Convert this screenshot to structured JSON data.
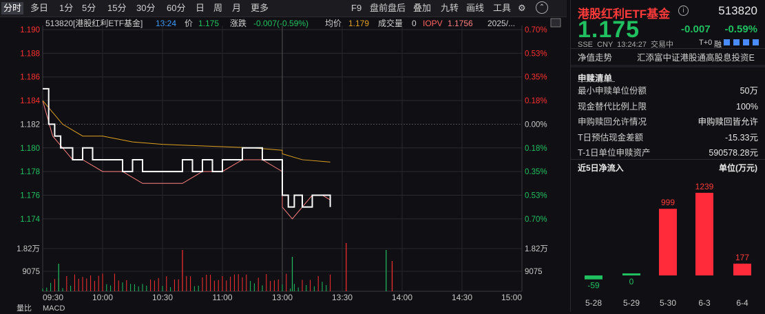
{
  "toolbar": {
    "periods": [
      "分时",
      "多日",
      "1分",
      "5分",
      "15分",
      "30分",
      "60分",
      "日",
      "周",
      "月",
      "更多"
    ],
    "active": "分时",
    "right_items": [
      "F9",
      "盘前盘后",
      "叠加",
      "九转",
      "画线",
      "工具"
    ],
    "icons": [
      "gear-icon",
      "chevron-up-icon"
    ]
  },
  "quote_bar": {
    "code_name": "513820[港股红利ETF基金]",
    "time": "13:24",
    "price_label": "价",
    "price": "1.175",
    "change_label": "涨跌",
    "change": "-0.007(-0.59%)",
    "avg_label": "均价",
    "avg": "1.179",
    "volume_label": "成交量",
    "volume": "0",
    "iopv_label": "IOPV",
    "iopv": "1.1756",
    "date": "2025/..."
  },
  "axes": {
    "price_ticks": [
      "1.190",
      "1.188",
      "1.186",
      "1.184",
      "1.182",
      "1.180",
      "1.178",
      "1.176",
      "1.174"
    ],
    "pct_ticks": [
      "0.70%",
      "0.53%",
      "0.35%",
      "0.18%",
      "0.00%",
      "0.18%",
      "0.35%",
      "0.53%",
      "0.70%"
    ],
    "volume_ticks": [
      "1.82万",
      "9075"
    ],
    "volume_ticks_right": [
      "1.82万",
      "9075"
    ],
    "time_ticks": [
      "09:30",
      "10:00",
      "10:30",
      "11:00",
      "13:00",
      "13:30",
      "14:00",
      "14:30",
      "15:00"
    ]
  },
  "bottom_tabs": [
    "量比",
    "MACD"
  ],
  "colors": {
    "up": "#ff3030",
    "down": "#20c060",
    "price_line": "#ffffff",
    "avg_line": "#e0a020",
    "iopv_line": "#ff8080",
    "accent": "#3b9cff"
  },
  "chart_data": {
    "type": "line",
    "ylim": [
      1.173,
      1.19
    ],
    "prev_close": 1.182,
    "series": [
      {
        "name": "价",
        "x": [
          "09:30",
          "09:33",
          "09:36",
          "09:39",
          "09:42",
          "09:45",
          "09:50",
          "09:55",
          "10:00",
          "10:05",
          "10:10",
          "10:15",
          "10:20",
          "10:25",
          "10:30",
          "10:35",
          "10:40",
          "10:45",
          "10:50",
          "10:55",
          "11:00",
          "11:05",
          "11:10",
          "11:15",
          "11:20",
          "11:25",
          "11:30",
          "13:00",
          "13:03",
          "13:06",
          "13:10",
          "13:15",
          "13:20",
          "13:24"
        ],
        "values": [
          1.185,
          1.182,
          1.181,
          1.18,
          1.18,
          1.179,
          1.18,
          1.179,
          1.179,
          1.179,
          1.178,
          1.179,
          1.178,
          1.178,
          1.178,
          1.178,
          1.179,
          1.178,
          1.179,
          1.178,
          1.179,
          1.179,
          1.18,
          1.18,
          1.179,
          1.179,
          1.178,
          1.176,
          1.175,
          1.176,
          1.175,
          1.176,
          1.176,
          1.175
        ]
      },
      {
        "name": "均价",
        "x": [
          "09:30",
          "09:40",
          "09:50",
          "10:00",
          "10:15",
          "10:30",
          "10:45",
          "11:00",
          "11:15",
          "11:30",
          "13:00",
          "13:10",
          "13:24"
        ],
        "values": [
          1.184,
          1.182,
          1.181,
          1.181,
          1.1805,
          1.1803,
          1.1802,
          1.1801,
          1.18,
          1.1798,
          1.1795,
          1.179,
          1.1788
        ]
      },
      {
        "name": "IOPV",
        "x": [
          "09:30",
          "09:35",
          "09:40",
          "09:45",
          "09:50",
          "10:00",
          "10:10",
          "10:20",
          "10:30",
          "10:40",
          "10:50",
          "11:00",
          "11:10",
          "11:20",
          "11:30",
          "13:00",
          "13:05",
          "13:10",
          "13:15",
          "13:20",
          "13:24"
        ],
        "values": [
          1.184,
          1.181,
          1.18,
          1.179,
          1.179,
          1.178,
          1.178,
          1.177,
          1.177,
          1.177,
          1.178,
          1.178,
          1.179,
          1.179,
          1.178,
          1.175,
          1.174,
          1.175,
          1.176,
          1.176,
          1.1756
        ]
      }
    ]
  },
  "info": {
    "title": "港股红利ETF基金",
    "code": "513820",
    "price": "1.175",
    "change": "-0.007",
    "change_pct": "-0.59%",
    "meta": "SSE  CNY  13:24:27  交易中",
    "t0": "T+0",
    "rong": "融",
    "tab_left": "净值走势",
    "tab_right": "汇添富中证港股通高股息投资E",
    "subscription_title": "申赎清单",
    "rows": [
      {
        "k": "最小申赎单位份额",
        "v": "50万"
      },
      {
        "k": "现金替代比例上限",
        "v": "100%"
      },
      {
        "k": "申购赎回允许情况",
        "v": "申购赎回皆允许"
      },
      {
        "k": "T日预估现金差额",
        "v": "-15.33元"
      },
      {
        "k": "T-1日单位申赎资产",
        "v": "590578.28元"
      }
    ],
    "flow_title": "近5日净流入",
    "flow_unit": "单位(万元)"
  },
  "flow_chart": {
    "type": "bar",
    "categories": [
      "5-28",
      "5-29",
      "5-30",
      "6-3",
      "6-4"
    ],
    "values": [
      -59,
      0,
      999,
      1239,
      177
    ],
    "labels": [
      "-59",
      "0",
      "999",
      "1239",
      "177"
    ]
  }
}
